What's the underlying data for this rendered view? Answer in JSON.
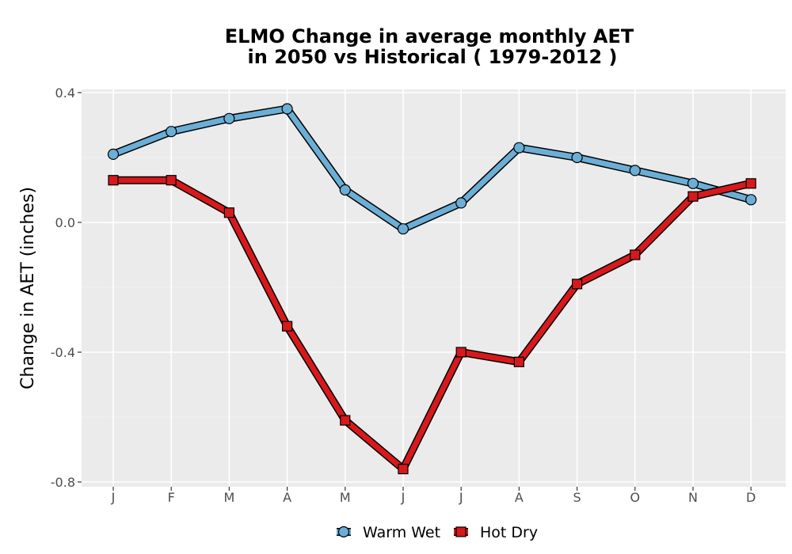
{
  "chart_data": {
    "type": "line",
    "title_line1": "ELMO  Change in average monthly AET",
    "title_line2": "in 2050 vs Historical ( 1979-2012 )",
    "xlabel": "",
    "ylabel": "Change in AET (inches)",
    "categories": [
      "J",
      "F",
      "M",
      "A",
      "M",
      "J",
      "J",
      "A",
      "S",
      "O",
      "N",
      "D"
    ],
    "ylim": [
      -0.8,
      0.4
    ],
    "yticks": [
      0.4,
      0.0,
      -0.4,
      -0.8
    ],
    "ytick_labels": [
      "0.4",
      "0.0",
      "-0.4",
      "-0.8"
    ],
    "grid": true,
    "legend_position": "bottom",
    "series": [
      {
        "name": "Warm Wet",
        "color": "#6baed6",
        "marker": "circle",
        "values": [
          0.21,
          0.28,
          0.32,
          0.35,
          0.1,
          -0.02,
          0.06,
          0.23,
          0.2,
          0.16,
          0.12,
          0.07
        ]
      },
      {
        "name": "Hot Dry",
        "color": "#d7191c",
        "marker": "square",
        "values": [
          0.13,
          0.13,
          0.03,
          -0.32,
          -0.61,
          -0.76,
          -0.4,
          -0.43,
          -0.19,
          -0.1,
          0.08,
          0.12
        ]
      }
    ]
  }
}
